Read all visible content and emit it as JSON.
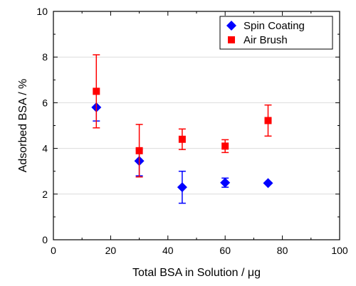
{
  "chart_data": {
    "type": "scatter",
    "xlabel": "Total BSA in Solution / μg",
    "ylabel": "Adsorbed BSA / %",
    "xlim": [
      0,
      100
    ],
    "ylim": [
      0,
      10
    ],
    "xticks": [
      0,
      20,
      40,
      60,
      80,
      100
    ],
    "yticks": [
      0,
      2,
      4,
      6,
      8,
      10
    ],
    "grid": "horizontal",
    "legend_position": "top-right",
    "series": [
      {
        "name": "Spin Coating",
        "marker": "diamond",
        "color": "#0000ff",
        "points": [
          {
            "x": 15,
            "y": 5.8,
            "err_low": 0.6,
            "err_high": 0.0
          },
          {
            "x": 30,
            "y": 3.45,
            "err_low": 0.65,
            "err_high": 0.5
          },
          {
            "x": 45,
            "y": 2.3,
            "err_low": 0.7,
            "err_high": 0.7
          },
          {
            "x": 60,
            "y": 2.5,
            "err_low": 0.2,
            "err_high": 0.2
          },
          {
            "x": 75,
            "y": 2.48,
            "err_low": 0.0,
            "err_high": 0.0
          }
        ]
      },
      {
        "name": "Air Brush",
        "marker": "square",
        "color": "#ff0000",
        "points": [
          {
            "x": 15,
            "y": 6.5,
            "err_low": 1.6,
            "err_high": 1.6
          },
          {
            "x": 30,
            "y": 3.9,
            "err_low": 1.15,
            "err_high": 1.15
          },
          {
            "x": 45,
            "y": 4.4,
            "err_low": 0.45,
            "err_high": 0.45
          },
          {
            "x": 60,
            "y": 4.1,
            "err_low": 0.28,
            "err_high": 0.28
          },
          {
            "x": 75,
            "y": 5.22,
            "err_low": 0.68,
            "err_high": 0.68
          }
        ]
      }
    ]
  }
}
